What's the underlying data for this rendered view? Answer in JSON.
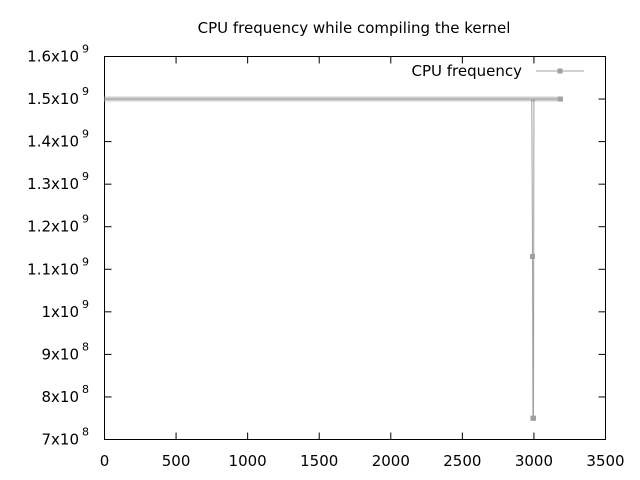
{
  "chart_data": {
    "type": "line",
    "title": "CPU frequency while compiling the kernel",
    "xlabel": "",
    "ylabel": "",
    "xlim": [
      0,
      3500
    ],
    "ylim": [
      700000000,
      1600000000
    ],
    "x_ticks": [
      {
        "value": 0,
        "label": "0"
      },
      {
        "value": 500,
        "label": "500"
      },
      {
        "value": 1000,
        "label": "1000"
      },
      {
        "value": 1500,
        "label": "1500"
      },
      {
        "value": 2000,
        "label": "2000"
      },
      {
        "value": 2500,
        "label": "2500"
      },
      {
        "value": 3000,
        "label": "3000"
      },
      {
        "value": 3500,
        "label": "3500"
      }
    ],
    "y_ticks": [
      {
        "value": 700000000,
        "mantissa": "7x10",
        "exponent": "8"
      },
      {
        "value": 800000000,
        "mantissa": "8x10",
        "exponent": "8"
      },
      {
        "value": 900000000,
        "mantissa": "9x10",
        "exponent": "8"
      },
      {
        "value": 1000000000,
        "mantissa": "1x10",
        "exponent": "9"
      },
      {
        "value": 1100000000,
        "mantissa": "1.1x10",
        "exponent": "9"
      },
      {
        "value": 1200000000,
        "mantissa": "1.2x10",
        "exponent": "9"
      },
      {
        "value": 1300000000,
        "mantissa": "1.3x10",
        "exponent": "9"
      },
      {
        "value": 1400000000,
        "mantissa": "1.4x10",
        "exponent": "9"
      },
      {
        "value": 1500000000,
        "mantissa": "1.5x10",
        "exponent": "9"
      },
      {
        "value": 1600000000,
        "mantissa": "1.6x10",
        "exponent": "9"
      }
    ],
    "grid": false,
    "legend_position": "top-right",
    "series": [
      {
        "name": "CPU frequency",
        "color": "#a0a0a0",
        "marker": "square-dot",
        "steady_value": 1500000000,
        "steady_x_range": [
          0,
          3185
        ],
        "points": [
          {
            "x": 0,
            "y": 1500000000
          },
          {
            "x": 2985,
            "y": 1500000000
          },
          {
            "x": 2990,
            "y": 1130000000
          },
          {
            "x": 2993,
            "y": 750000000
          },
          {
            "x": 2997,
            "y": 750000000
          },
          {
            "x": 3000,
            "y": 1500000000
          },
          {
            "x": 3185,
            "y": 1500000000
          }
        ]
      }
    ]
  }
}
